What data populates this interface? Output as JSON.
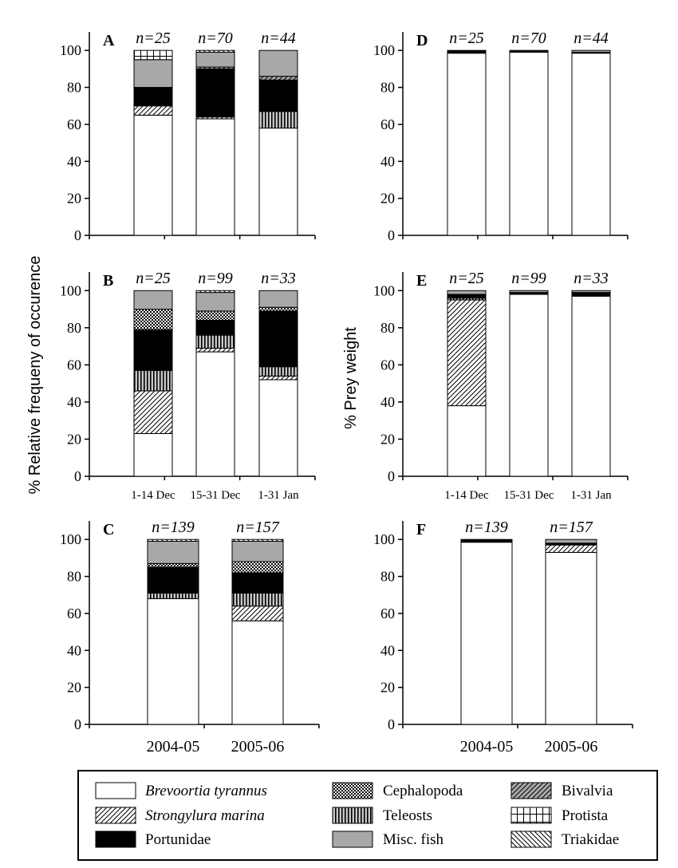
{
  "figure": {
    "ylabel_left": "% Relative frequeny of occurence",
    "ylabel_right": "% Prey weight"
  },
  "categories_legend": [
    {
      "key": "brevoortia",
      "label": "Brevoortia tyrannus",
      "italic": true,
      "pattern": "white"
    },
    {
      "key": "strongylura",
      "label": "Strongylura marina",
      "italic": true,
      "pattern": "diag-fwd"
    },
    {
      "key": "portunidae",
      "label": "Portunidae",
      "italic": false,
      "pattern": "black"
    },
    {
      "key": "cephalopoda",
      "label": "Cephalopoda",
      "italic": false,
      "pattern": "checker"
    },
    {
      "key": "teleosts",
      "label": "Teleosts",
      "italic": false,
      "pattern": "vertical"
    },
    {
      "key": "miscfish",
      "label": "Misc. fish",
      "italic": false,
      "pattern": "gray"
    },
    {
      "key": "bivalvia",
      "label": "Bivalvia",
      "italic": false,
      "pattern": "gray-diag"
    },
    {
      "key": "protista",
      "label": "Protista",
      "italic": false,
      "pattern": "grid"
    },
    {
      "key": "triakidae",
      "label": "Triakidae",
      "italic": false,
      "pattern": "diag-back"
    }
  ],
  "chart_data": [
    {
      "panel": "A",
      "type": "bar",
      "stacked": true,
      "ylim": [
        0,
        100
      ],
      "yticks": [
        0,
        20,
        40,
        60,
        80,
        100
      ],
      "categories": [
        "",
        "",
        ""
      ],
      "n_labels": [
        "n=25",
        "n=70",
        "n=44"
      ],
      "series": [
        {
          "key": "brevoortia",
          "values": [
            65,
            63,
            58
          ]
        },
        {
          "key": "strongylura",
          "values": [
            5,
            1,
            0
          ]
        },
        {
          "key": "teleosts",
          "values": [
            0,
            0,
            9
          ]
        },
        {
          "key": "portunidae",
          "values": [
            10,
            26,
            17
          ]
        },
        {
          "key": "cephalopoda",
          "values": [
            0,
            0,
            0
          ]
        },
        {
          "key": "bivalvia",
          "values": [
            0,
            1,
            2
          ]
        },
        {
          "key": "miscfish",
          "values": [
            15,
            8,
            14
          ]
        },
        {
          "key": "protista",
          "values": [
            5,
            0,
            0
          ]
        },
        {
          "key": "triakidae",
          "values": [
            0,
            1,
            0
          ]
        }
      ]
    },
    {
      "panel": "B",
      "type": "bar",
      "stacked": true,
      "ylim": [
        0,
        100
      ],
      "yticks": [
        0,
        20,
        40,
        60,
        80,
        100
      ],
      "categories": [
        "1-14 Dec",
        "15-31 Dec",
        "1-31 Jan"
      ],
      "n_labels": [
        "n=25",
        "n=99",
        "n=33"
      ],
      "series": [
        {
          "key": "brevoortia",
          "values": [
            23,
            67,
            52
          ]
        },
        {
          "key": "strongylura",
          "values": [
            23,
            2,
            2
          ]
        },
        {
          "key": "teleosts",
          "values": [
            11,
            7,
            5
          ]
        },
        {
          "key": "portunidae",
          "values": [
            22,
            8,
            30
          ]
        },
        {
          "key": "cephalopoda",
          "values": [
            11,
            5,
            2
          ]
        },
        {
          "key": "bivalvia",
          "values": [
            0,
            0,
            0
          ]
        },
        {
          "key": "miscfish",
          "values": [
            10,
            10,
            9
          ]
        },
        {
          "key": "protista",
          "values": [
            0,
            0,
            0
          ]
        },
        {
          "key": "triakidae",
          "values": [
            0,
            1,
            0
          ]
        }
      ]
    },
    {
      "panel": "C",
      "type": "bar",
      "stacked": true,
      "ylim": [
        0,
        100
      ],
      "yticks": [
        0,
        20,
        40,
        60,
        80,
        100
      ],
      "categories": [
        "2004-05",
        "2005-06"
      ],
      "n_labels": [
        "n=139",
        "n=157"
      ],
      "series": [
        {
          "key": "brevoortia",
          "values": [
            68,
            56
          ]
        },
        {
          "key": "strongylura",
          "values": [
            0,
            8
          ]
        },
        {
          "key": "teleosts",
          "values": [
            3,
            7
          ]
        },
        {
          "key": "portunidae",
          "values": [
            14,
            11
          ]
        },
        {
          "key": "cephalopoda",
          "values": [
            2,
            6
          ]
        },
        {
          "key": "bivalvia",
          "values": [
            0,
            0
          ]
        },
        {
          "key": "miscfish",
          "values": [
            12,
            11
          ]
        },
        {
          "key": "protista",
          "values": [
            0,
            0
          ]
        },
        {
          "key": "triakidae",
          "values": [
            1,
            1
          ]
        }
      ]
    },
    {
      "panel": "D",
      "type": "bar",
      "stacked": true,
      "ylim": [
        0,
        100
      ],
      "yticks": [
        0,
        20,
        40,
        60,
        80,
        100
      ],
      "categories": [
        "",
        "",
        ""
      ],
      "n_labels": [
        "n=25",
        "n=70",
        "n=44"
      ],
      "series": [
        {
          "key": "brevoortia",
          "values": [
            98.5,
            99,
            98.5
          ]
        },
        {
          "key": "strongylura",
          "values": [
            0,
            0,
            0
          ]
        },
        {
          "key": "teleosts",
          "values": [
            0,
            0,
            0
          ]
        },
        {
          "key": "portunidae",
          "values": [
            1.5,
            1,
            0.5
          ]
        },
        {
          "key": "cephalopoda",
          "values": [
            0,
            0,
            0
          ]
        },
        {
          "key": "bivalvia",
          "values": [
            0,
            0,
            0
          ]
        },
        {
          "key": "miscfish",
          "values": [
            0,
            0,
            1
          ]
        },
        {
          "key": "protista",
          "values": [
            0,
            0,
            0
          ]
        },
        {
          "key": "triakidae",
          "values": [
            0,
            0,
            0
          ]
        }
      ]
    },
    {
      "panel": "E",
      "type": "bar",
      "stacked": true,
      "ylim": [
        0,
        100
      ],
      "yticks": [
        0,
        20,
        40,
        60,
        80,
        100
      ],
      "categories": [
        "1-14 Dec",
        "15-31 Dec",
        "1-31 Jan"
      ],
      "n_labels": [
        "n=25",
        "n=99",
        "n=33"
      ],
      "series": [
        {
          "key": "brevoortia",
          "values": [
            38,
            98,
            97
          ]
        },
        {
          "key": "strongylura",
          "values": [
            57,
            0,
            0
          ]
        },
        {
          "key": "teleosts",
          "values": [
            1,
            0,
            0
          ]
        },
        {
          "key": "portunidae",
          "values": [
            2,
            1,
            2
          ]
        },
        {
          "key": "cephalopoda",
          "values": [
            0,
            0,
            0
          ]
        },
        {
          "key": "bivalvia",
          "values": [
            0,
            0,
            0
          ]
        },
        {
          "key": "miscfish",
          "values": [
            2,
            1,
            1
          ]
        },
        {
          "key": "protista",
          "values": [
            0,
            0,
            0
          ]
        },
        {
          "key": "triakidae",
          "values": [
            0,
            0,
            0
          ]
        }
      ]
    },
    {
      "panel": "F",
      "type": "bar",
      "stacked": true,
      "ylim": [
        0,
        100
      ],
      "yticks": [
        0,
        20,
        40,
        60,
        80,
        100
      ],
      "categories": [
        "2004-05",
        "2005-06"
      ],
      "n_labels": [
        "n=139",
        "n=157"
      ],
      "series": [
        {
          "key": "brevoortia",
          "values": [
            98.5,
            93
          ]
        },
        {
          "key": "strongylura",
          "values": [
            0,
            4
          ]
        },
        {
          "key": "teleosts",
          "values": [
            0,
            0
          ]
        },
        {
          "key": "portunidae",
          "values": [
            1.5,
            1
          ]
        },
        {
          "key": "cephalopoda",
          "values": [
            0,
            0
          ]
        },
        {
          "key": "bivalvia",
          "values": [
            0,
            0
          ]
        },
        {
          "key": "miscfish",
          "values": [
            0,
            2
          ]
        },
        {
          "key": "protista",
          "values": [
            0,
            0
          ]
        },
        {
          "key": "triakidae",
          "values": [
            0,
            0
          ]
        }
      ]
    }
  ]
}
